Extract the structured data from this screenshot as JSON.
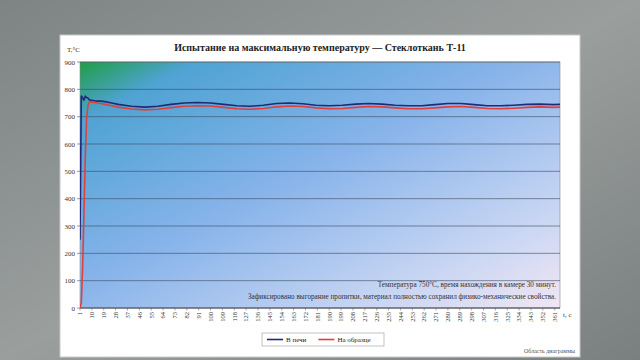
{
  "chart_data": {
    "type": "line",
    "title": "Испытание на максимальную температуру — Стеклоткань Т-11",
    "y_label": "T,°C",
    "x_label": "t, c",
    "annotations": [
      "Температура 750°С, время нахождения в камере 30 минут.",
      "Зафиксировано выгорание пропитки, материал полностью сохранил физико-механические свойства."
    ],
    "footer": "Область диаграммы",
    "x": [
      1,
      2,
      3,
      4,
      5,
      6,
      7,
      8,
      9,
      10,
      12,
      14,
      17,
      20,
      25,
      30,
      40,
      50,
      60,
      70,
      80,
      90,
      100,
      110,
      120,
      130,
      140,
      150,
      160,
      170,
      180,
      190,
      200,
      210,
      220,
      230,
      240,
      250,
      260,
      270,
      280,
      290,
      300,
      310,
      320,
      330,
      340,
      350,
      360,
      365
    ],
    "series": [
      {
        "name": "В печи",
        "color": "#1f2a78",
        "values": [
          250,
          775,
          770,
          760,
          775,
          770,
          768,
          762,
          760,
          760,
          758,
          757,
          757,
          755,
          750,
          745,
          738,
          735,
          738,
          745,
          750,
          752,
          750,
          745,
          740,
          738,
          742,
          748,
          750,
          747,
          742,
          740,
          742,
          746,
          748,
          746,
          742,
          740,
          740,
          744,
          748,
          748,
          744,
          740,
          740,
          742,
          745,
          746,
          744,
          745
        ]
      },
      {
        "name": "На образце",
        "color": "#e0403a",
        "values": [
          0,
          20,
          150,
          350,
          550,
          690,
          740,
          752,
          755,
          754,
          752,
          750,
          748,
          745,
          740,
          735,
          728,
          725,
          727,
          733,
          738,
          740,
          739,
          734,
          729,
          727,
          730,
          736,
          739,
          737,
          732,
          729,
          730,
          734,
          737,
          736,
          732,
          729,
          729,
          732,
          736,
          737,
          734,
          730,
          729,
          731,
          734,
          736,
          734,
          735
        ]
      }
    ],
    "xlim": [
      1,
      365
    ],
    "xticks": [
      1,
      10,
      19,
      28,
      37,
      46,
      55,
      64,
      73,
      82,
      91,
      100,
      109,
      118,
      127,
      136,
      145,
      154,
      163,
      172,
      181,
      190,
      199,
      208,
      217,
      226,
      235,
      244,
      253,
      262,
      271,
      280,
      289,
      298,
      307,
      316,
      325,
      334,
      343,
      352,
      361
    ],
    "ylim": [
      0,
      900
    ],
    "yticks": [
      0,
      100,
      200,
      300,
      400,
      500,
      600,
      700,
      800,
      900
    ],
    "grid": true,
    "legend": "bottom"
  }
}
